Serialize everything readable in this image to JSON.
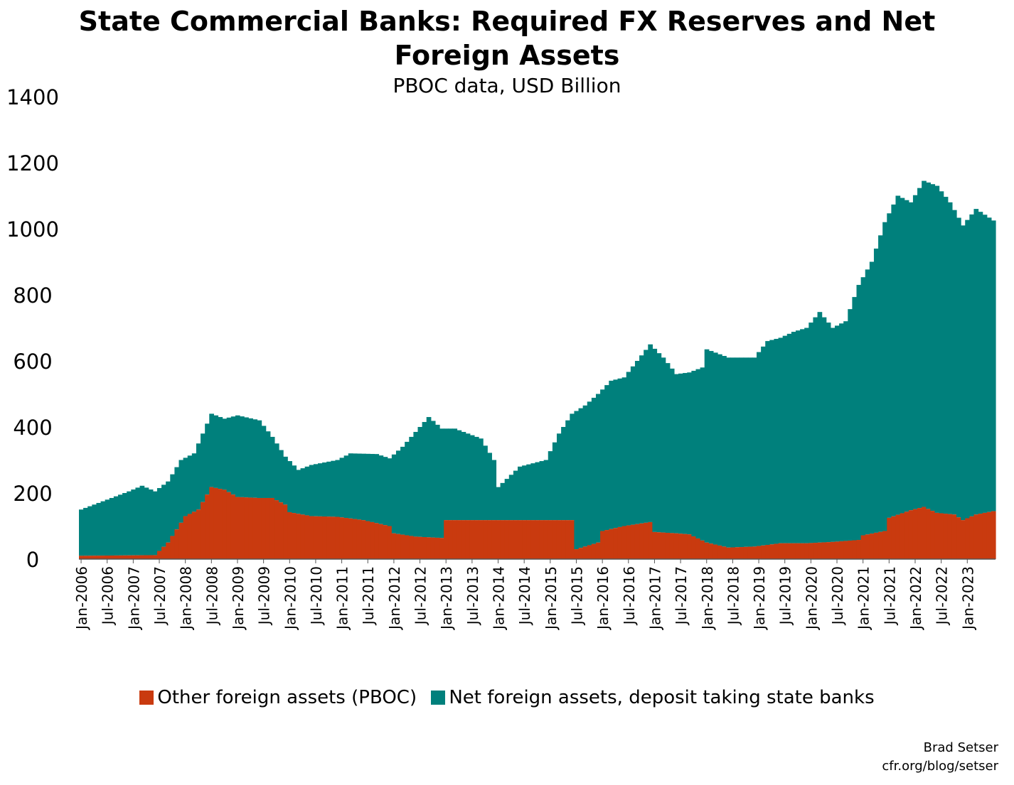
{
  "chart_data": {
    "type": "area",
    "title": "State Commercial Banks: Required FX Reserves and Net",
    "title_line2": "Foreign Assets",
    "subtitle": "PBOC data, USD Billion",
    "xlabel": "",
    "ylabel": "",
    "ylim": [
      0,
      1400
    ],
    "yticks": [
      "0",
      "200",
      "400",
      "600",
      "800",
      "1000",
      "1200",
      "1400"
    ],
    "x_tick_labels": [
      "Jan-2006",
      "Jul-2006",
      "Jan-2007",
      "Jul-2007",
      "Jan-2008",
      "Jul-2008",
      "Jan-2009",
      "Jul-2009",
      "Jan-2010",
      "Jul-2010",
      "Jan-2011",
      "Jul-2011",
      "Jan-2012",
      "Jul-2012",
      "Jan-2013",
      "Jul-2013",
      "Jan-2014",
      "Jul-2014",
      "Jan-2015",
      "Jul-2015",
      "Jan-2016",
      "Jul-2016",
      "Jan-2017",
      "Jul-2017",
      "Jan-2018",
      "Jul-2018",
      "Jan-2019",
      "Jul-2019",
      "Jan-2020",
      "Jul-2020",
      "Jan-2021",
      "Jul-2021",
      "Jan-2022",
      "Jul-2022",
      "Jan-2023"
    ],
    "x_start": "2006-01",
    "x_end": "2023-07",
    "stacked": true,
    "legend_position": "bottom",
    "grid": false,
    "series": [
      {
        "name": "Other foreign assets (PBOC)",
        "color": "#c93a0f",
        "points": [
          [
            "2006-01",
            10
          ],
          [
            "2007-06",
            12
          ],
          [
            "2007-09",
            50
          ],
          [
            "2008-01",
            130
          ],
          [
            "2008-04",
            150
          ],
          [
            "2008-07",
            218
          ],
          [
            "2008-10",
            210
          ],
          [
            "2009-01",
            188
          ],
          [
            "2009-06",
            185
          ],
          [
            "2009-09",
            185
          ],
          [
            "2009-12",
            165
          ],
          [
            "2010-01",
            142
          ],
          [
            "2010-06",
            130
          ],
          [
            "2010-12",
            128
          ],
          [
            "2011-06",
            118
          ],
          [
            "2011-12",
            100
          ],
          [
            "2012-01",
            78
          ],
          [
            "2012-06",
            68
          ],
          [
            "2012-12",
            64
          ],
          [
            "2013-01",
            118
          ],
          [
            "2014-01",
            118
          ],
          [
            "2014-06",
            118
          ],
          [
            "2015-06",
            118
          ],
          [
            "2015-07",
            30
          ],
          [
            "2015-12",
            50
          ],
          [
            "2016-01",
            85
          ],
          [
            "2016-06",
            100
          ],
          [
            "2016-12",
            112
          ],
          [
            "2017-01",
            82
          ],
          [
            "2017-06",
            78
          ],
          [
            "2017-09",
            75
          ],
          [
            "2018-01",
            50
          ],
          [
            "2018-06",
            35
          ],
          [
            "2018-12",
            38
          ],
          [
            "2019-06",
            48
          ],
          [
            "2019-12",
            48
          ],
          [
            "2020-06",
            52
          ],
          [
            "2020-12",
            58
          ],
          [
            "2021-01",
            72
          ],
          [
            "2021-06",
            85
          ],
          [
            "2021-07",
            125
          ],
          [
            "2021-12",
            148
          ],
          [
            "2022-03",
            158
          ],
          [
            "2022-06",
            140
          ],
          [
            "2022-10",
            135
          ],
          [
            "2022-12",
            118
          ],
          [
            "2023-03",
            135
          ],
          [
            "2023-07",
            145
          ]
        ]
      },
      {
        "name": "Net foreign assets, deposit taking state banks",
        "color": "#00807c",
        "totals": [
          [
            "2006-01",
            150
          ],
          [
            "2006-06",
            175
          ],
          [
            "2006-12",
            205
          ],
          [
            "2007-03",
            222
          ],
          [
            "2007-06",
            205
          ],
          [
            "2007-09",
            235
          ],
          [
            "2007-12",
            300
          ],
          [
            "2008-03",
            320
          ],
          [
            "2008-07",
            440
          ],
          [
            "2008-10",
            425
          ],
          [
            "2009-01",
            435
          ],
          [
            "2009-06",
            420
          ],
          [
            "2009-09",
            370
          ],
          [
            "2009-12",
            310
          ],
          [
            "2010-03",
            270
          ],
          [
            "2010-06",
            285
          ],
          [
            "2010-12",
            300
          ],
          [
            "2011-03",
            320
          ],
          [
            "2011-09",
            318
          ],
          [
            "2011-12",
            305
          ],
          [
            "2012-03",
            340
          ],
          [
            "2012-09",
            430
          ],
          [
            "2012-12",
            395
          ],
          [
            "2013-03",
            395
          ],
          [
            "2013-09",
            365
          ],
          [
            "2013-12",
            300
          ],
          [
            "2014-01",
            218
          ],
          [
            "2014-06",
            280
          ],
          [
            "2014-12",
            300
          ],
          [
            "2015-03",
            380
          ],
          [
            "2015-06",
            440
          ],
          [
            "2015-09",
            465
          ],
          [
            "2015-12",
            500
          ],
          [
            "2016-03",
            540
          ],
          [
            "2016-06",
            550
          ],
          [
            "2016-09",
            600
          ],
          [
            "2016-12",
            650
          ],
          [
            "2017-03",
            610
          ],
          [
            "2017-06",
            560
          ],
          [
            "2017-09",
            565
          ],
          [
            "2017-12",
            580
          ],
          [
            "2018-01",
            635
          ],
          [
            "2018-06",
            610
          ],
          [
            "2018-12",
            610
          ],
          [
            "2019-03",
            660
          ],
          [
            "2019-06",
            670
          ],
          [
            "2019-09",
            688
          ],
          [
            "2019-12",
            700
          ],
          [
            "2020-03",
            748
          ],
          [
            "2020-06",
            700
          ],
          [
            "2020-09",
            720
          ],
          [
            "2020-12",
            830
          ],
          [
            "2021-03",
            900
          ],
          [
            "2021-06",
            1020
          ],
          [
            "2021-09",
            1100
          ],
          [
            "2021-12",
            1080
          ],
          [
            "2022-03",
            1145
          ],
          [
            "2022-06",
            1130
          ],
          [
            "2022-09",
            1080
          ],
          [
            "2022-12",
            1010
          ],
          [
            "2023-03",
            1060
          ],
          [
            "2023-07",
            1025
          ]
        ]
      }
    ]
  },
  "credit": {
    "line1": "Brad Setser",
    "line2": "cfr.org/blog/setser"
  }
}
